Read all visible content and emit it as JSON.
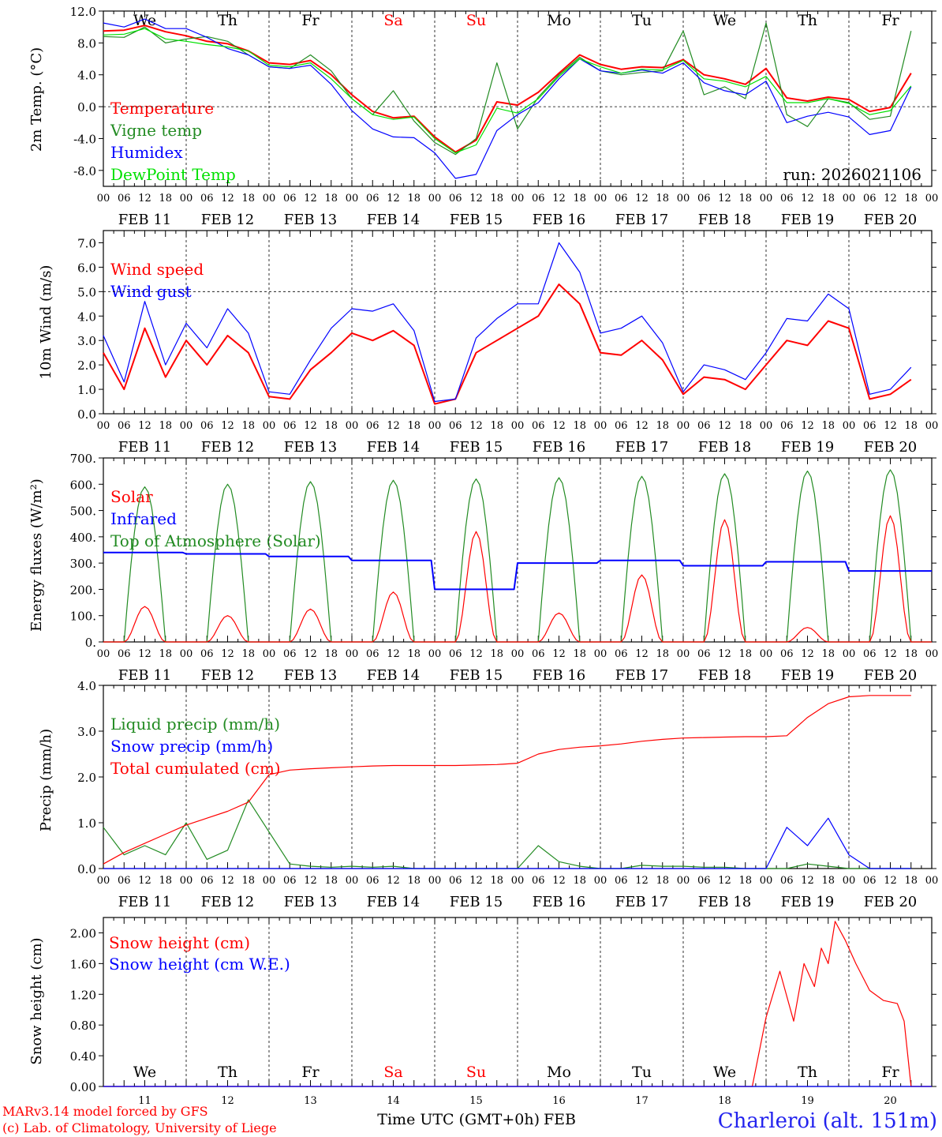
{
  "chart_data": [
    {
      "type": "line",
      "ylabel": "2m Temp. (°C)",
      "ylim": [
        -10,
        12
      ],
      "yticks": [
        "-8.0",
        "-4.0",
        "0.0",
        "4.0",
        "8.0",
        "12.0"
      ],
      "ytick_values": [
        -8,
        -4,
        0,
        4,
        8,
        12
      ],
      "dashed_reference": 0,
      "day_labels": [
        "We",
        "Th",
        "Fr",
        "Sa",
        "Su",
        "Mo",
        "Tu",
        "We",
        "Th",
        "Fr"
      ],
      "run_label": "run: 2026021106",
      "x_hours": [
        0,
        6,
        12,
        18,
        24,
        30,
        36,
        42,
        48,
        54,
        60,
        66,
        72,
        78,
        84,
        90,
        96,
        102,
        108,
        114,
        120,
        126,
        132,
        138,
        144,
        150,
        156,
        162,
        168,
        174,
        180,
        186,
        192,
        198,
        204,
        210,
        216,
        222,
        228,
        234
      ],
      "series": [
        {
          "name": "Temperature",
          "color": "#ff0000",
          "bold": true,
          "values": [
            9.5,
            9.6,
            10.2,
            9.4,
            8.9,
            8.2,
            7.9,
            7.0,
            5.5,
            5.3,
            5.8,
            4.0,
            1.5,
            -0.6,
            -1.4,
            -1.2,
            -3.8,
            -5.7,
            -4.2,
            0.6,
            0.2,
            1.8,
            4.2,
            6.5,
            5.3,
            4.7,
            5.0,
            4.9,
            5.9,
            4.0,
            3.5,
            2.8,
            4.8,
            1.1,
            0.7,
            1.2,
            0.9,
            -0.6,
            -0.1,
            4.2
          ]
        },
        {
          "name": "Vigne temp",
          "color": "#228b22",
          "bold": false,
          "values": [
            8.8,
            8.7,
            10.0,
            8.0,
            8.5,
            8.8,
            8.2,
            6.5,
            5.0,
            4.8,
            6.5,
            4.5,
            1.0,
            -1.0,
            2.0,
            -1.8,
            -4.5,
            -6.0,
            -4.0,
            5.5,
            -2.8,
            1.2,
            4.0,
            6.2,
            4.5,
            4.0,
            4.3,
            4.5,
            9.5,
            1.5,
            2.5,
            1.0,
            10.5,
            -1.0,
            -2.5,
            1.0,
            0.5,
            -1.6,
            -1.2,
            9.5
          ]
        },
        {
          "name": "Humidex",
          "color": "#0000ff",
          "bold": false,
          "values": [
            10.5,
            10.0,
            11.0,
            9.8,
            9.8,
            8.7,
            7.3,
            6.5,
            5.0,
            4.8,
            5.2,
            2.8,
            -0.5,
            -2.8,
            -3.8,
            -3.9,
            -5.8,
            -9.0,
            -8.5,
            -3.0,
            -1.0,
            0.5,
            3.5,
            6.0,
            4.5,
            4.2,
            4.6,
            4.2,
            5.5,
            3.0,
            2.0,
            1.5,
            3.2,
            -2.0,
            -1.2,
            -0.7,
            -1.3,
            -3.5,
            -3.0,
            2.5
          ]
        },
        {
          "name": "DewPoint Temp",
          "color": "#00e000",
          "bold": false,
          "values": [
            9.0,
            9.1,
            9.8,
            8.5,
            8.2,
            7.8,
            7.5,
            7.0,
            5.2,
            5.0,
            5.5,
            3.5,
            1.0,
            -1.0,
            -1.6,
            -1.3,
            -4.0,
            -5.8,
            -4.8,
            -0.2,
            -0.8,
            1.0,
            3.8,
            6.0,
            5.0,
            4.2,
            4.7,
            4.6,
            5.8,
            3.5,
            3.2,
            2.5,
            3.8,
            0.5,
            0.5,
            1.0,
            0.4,
            -1.0,
            -0.5,
            2.6
          ]
        }
      ]
    },
    {
      "type": "line",
      "ylabel": "10m Wind (m/s)",
      "ylim": [
        0,
        7.5
      ],
      "yticks": [
        "0.0",
        "1.0",
        "2.0",
        "3.0",
        "4.0",
        "5.0",
        "6.0",
        "7.0"
      ],
      "ytick_values": [
        0,
        1,
        2,
        3,
        4,
        5,
        6,
        7
      ],
      "dashed_reference": 5,
      "x_hours": [
        0,
        6,
        12,
        18,
        24,
        30,
        36,
        42,
        48,
        54,
        60,
        66,
        72,
        78,
        84,
        90,
        96,
        102,
        108,
        114,
        120,
        126,
        132,
        138,
        144,
        150,
        156,
        162,
        168,
        174,
        180,
        186,
        192,
        198,
        204,
        210,
        216,
        222,
        228,
        234
      ],
      "series": [
        {
          "name": "Wind speed",
          "color": "#ff0000",
          "bold": true,
          "values": [
            2.5,
            1.0,
            3.5,
            1.5,
            3.0,
            2.0,
            3.2,
            2.5,
            0.7,
            0.6,
            1.8,
            2.5,
            3.3,
            3.0,
            3.4,
            2.8,
            0.4,
            0.6,
            2.5,
            3.0,
            3.5,
            4.0,
            5.3,
            4.5,
            2.5,
            2.4,
            3.0,
            2.2,
            0.8,
            1.5,
            1.4,
            1.0,
            2.0,
            3.0,
            2.8,
            3.8,
            3.5,
            0.6,
            0.8,
            1.4
          ]
        },
        {
          "name": "Wind gust",
          "color": "#0000ff",
          "bold": false,
          "values": [
            3.2,
            1.3,
            4.6,
            2.0,
            3.7,
            2.7,
            4.3,
            3.3,
            0.9,
            0.8,
            2.2,
            3.5,
            4.3,
            4.2,
            4.5,
            3.4,
            0.5,
            0.6,
            3.1,
            3.9,
            4.5,
            4.5,
            7.0,
            5.8,
            3.3,
            3.5,
            4.0,
            2.9,
            0.9,
            2.0,
            1.8,
            1.4,
            2.5,
            3.9,
            3.8,
            4.9,
            4.3,
            0.8,
            1.0,
            1.9
          ]
        }
      ]
    },
    {
      "type": "line",
      "ylabel": "Energy fluxes (W/m²)",
      "ylim": [
        0,
        700
      ],
      "yticks": [
        "0.",
        "100.",
        "200.",
        "300.",
        "400.",
        "500.",
        "600.",
        "700."
      ],
      "ytick_values": [
        0,
        100,
        200,
        300,
        400,
        500,
        600,
        700
      ],
      "solar_peaks": [
        135,
        100,
        125,
        190,
        420,
        110,
        255,
        465,
        55,
        480
      ],
      "toa_peaks": [
        590,
        600,
        610,
        615,
        620,
        625,
        630,
        640,
        650,
        655
      ],
      "infrared_daily": [
        340,
        335,
        325,
        310,
        200,
        300,
        310,
        290,
        305,
        270
      ],
      "series": [
        {
          "name": "Solar",
          "color": "#ff0000",
          "bold": false
        },
        {
          "name": "Infrared",
          "color": "#0000ff",
          "bold": true
        },
        {
          "name": "Top of Atmosphere (Solar)",
          "color": "#228b22",
          "bold": false
        }
      ]
    },
    {
      "type": "line",
      "ylabel": "Precip (mm/h)",
      "ylim": [
        0,
        4
      ],
      "yticks": [
        "0.0",
        "1.0",
        "2.0",
        "3.0",
        "4.0"
      ],
      "ytick_values": [
        0,
        1,
        2,
        3,
        4
      ],
      "x_hours": [
        0,
        6,
        12,
        18,
        24,
        30,
        36,
        42,
        48,
        54,
        60,
        66,
        72,
        78,
        84,
        90,
        96,
        102,
        108,
        114,
        120,
        126,
        132,
        138,
        144,
        150,
        156,
        162,
        168,
        174,
        180,
        186,
        192,
        198,
        204,
        210,
        216,
        222,
        228,
        234
      ],
      "series": [
        {
          "name": "Liquid precip (mm/h)",
          "color": "#228b22",
          "bold": false,
          "values": [
            0.9,
            0.3,
            0.5,
            0.3,
            1.0,
            0.2,
            0.4,
            1.5,
            0.8,
            0.1,
            0.05,
            0.03,
            0.05,
            0.03,
            0.05,
            0.0,
            0.0,
            0.0,
            0.0,
            0.0,
            0.0,
            0.5,
            0.15,
            0.05,
            0.0,
            0.0,
            0.07,
            0.05,
            0.05,
            0.03,
            0.03,
            0.0,
            0.0,
            0.0,
            0.1,
            0.05,
            0.0,
            0.0,
            0.0,
            0.0
          ]
        },
        {
          "name": "Snow precip (mm/h)",
          "color": "#0000ff",
          "bold": false,
          "values": [
            0,
            0,
            0,
            0,
            0,
            0,
            0,
            0,
            0,
            0,
            0,
            0,
            0,
            0,
            0,
            0,
            0,
            0,
            0,
            0,
            0,
            0,
            0,
            0,
            0,
            0,
            0,
            0,
            0,
            0,
            0,
            0,
            0,
            0.9,
            0.5,
            1.1,
            0.3,
            0,
            0,
            0
          ]
        },
        {
          "name": "Total cumulated (cm)",
          "color": "#ff0000",
          "bold": false,
          "values": [
            0.1,
            0.35,
            0.55,
            0.75,
            0.95,
            1.1,
            1.25,
            1.45,
            2.05,
            2.15,
            2.18,
            2.2,
            2.22,
            2.24,
            2.25,
            2.25,
            2.25,
            2.25,
            2.26,
            2.27,
            2.3,
            2.5,
            2.6,
            2.65,
            2.68,
            2.72,
            2.78,
            2.82,
            2.85,
            2.86,
            2.87,
            2.88,
            2.88,
            2.9,
            3.3,
            3.6,
            3.75,
            3.78,
            3.78,
            3.78
          ]
        }
      ]
    },
    {
      "type": "line",
      "ylabel": "Snow height (cm)",
      "ylim": [
        0,
        2.2
      ],
      "yticks": [
        "0.00",
        "0.40",
        "0.80",
        "1.20",
        "1.60",
        "2.00"
      ],
      "ytick_values": [
        0,
        0.4,
        0.8,
        1.2,
        1.6,
        2.0
      ],
      "day_labels": [
        "We",
        "Th",
        "Fr",
        "Sa",
        "Su",
        "Mo",
        "Tu",
        "We",
        "Th",
        "Fr"
      ],
      "day_numbers": [
        "11",
        "12",
        "13",
        "14",
        "15",
        "16",
        "17",
        "18",
        "19",
        "20"
      ],
      "x_hours": [
        0,
        188,
        192,
        196,
        200,
        203,
        206,
        208,
        210,
        212,
        215,
        218,
        222,
        226,
        230,
        232,
        234,
        236,
        238,
        240
      ],
      "series": [
        {
          "name": "Snow height (cm)",
          "color": "#ff0000",
          "bold": false,
          "values": [
            0,
            0,
            0.9,
            1.5,
            0.85,
            1.6,
            1.3,
            1.8,
            1.6,
            2.15,
            1.9,
            1.6,
            1.25,
            1.12,
            1.08,
            0.85,
            0,
            0,
            0,
            0
          ]
        },
        {
          "name": "Snow height (cm W.E.)",
          "color": "#0000ff",
          "bold": false,
          "values": [
            0,
            0,
            0,
            0,
            0,
            0,
            0,
            0,
            0,
            0,
            0,
            0,
            0,
            0,
            0,
            0,
            0,
            0,
            0,
            0
          ]
        }
      ]
    }
  ],
  "axis": {
    "hour_labels": [
      "00",
      "06",
      "12",
      "18"
    ],
    "last_hour_label": "00",
    "date_labels": [
      "FEB 11",
      "FEB 12",
      "FEB 13",
      "FEB 14",
      "FEB 15",
      "FEB 16",
      "FEB 17",
      "FEB 18",
      "FEB 19",
      "FEB 20"
    ],
    "xlabel": "Time UTC (GMT+0h)",
    "xlabel_month": "FEB"
  },
  "colors": {
    "weekday": "#000000",
    "weekend": "#ff0000",
    "credit": "#ff0000",
    "station": "#2222ee"
  },
  "weekend_days": [
    "Sa",
    "Su"
  ],
  "footer": {
    "model_line": "MARv3.14 model forced by GFS",
    "credit_line": "(c) Lab. of Climatology, University of Liege",
    "station": "Charleroi (alt. 151m)"
  }
}
